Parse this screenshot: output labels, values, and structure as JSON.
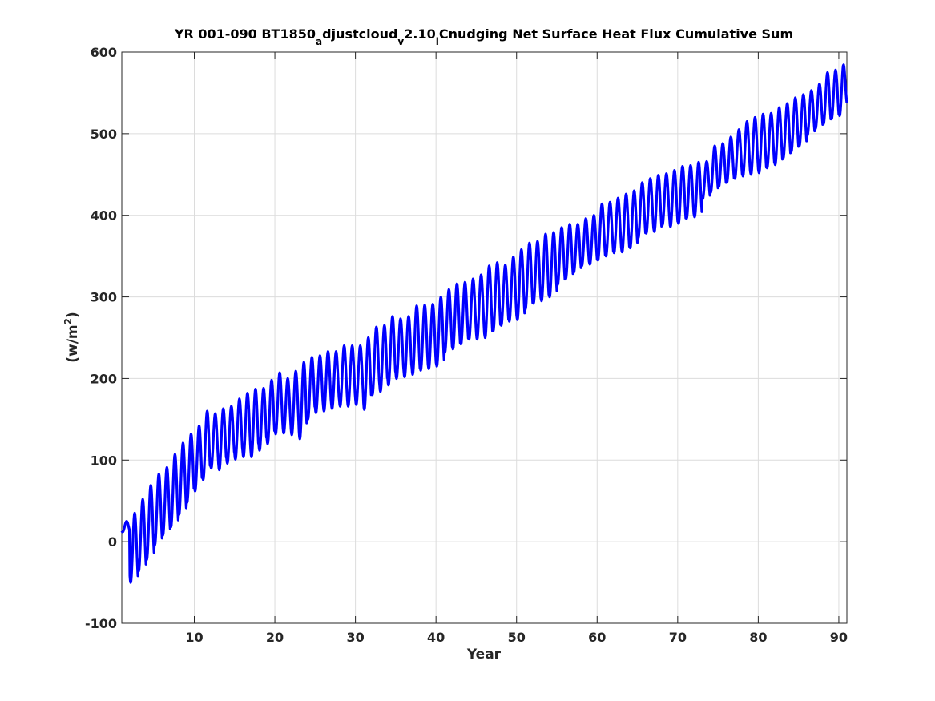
{
  "chart_data": {
    "type": "line",
    "title": {
      "seg1": "YR 001-090 BT1850",
      "sub1": "a",
      "seg2": "djustcloud",
      "sub2": "v",
      "seg3": "2.10",
      "sub3": "l",
      "seg4": "Cnudging Net Surface Heat Flux  Cumulative Sum"
    },
    "xlabel": "Year",
    "ylabel": {
      "main": "(w/m",
      "sup": "2",
      "close": ")"
    },
    "xlim": [
      1,
      91
    ],
    "ylim": [
      -100,
      600
    ],
    "xticks": [
      10,
      20,
      30,
      40,
      50,
      60,
      70,
      80,
      90
    ],
    "yticks": [
      -100,
      0,
      100,
      200,
      300,
      400,
      500,
      600
    ],
    "grid": true,
    "series": [
      {
        "color": "#0000ff",
        "sampling": "annual mean (min/max envelope of a yearly seasonal cycle)",
        "year": [
          1,
          2,
          3,
          4,
          5,
          6,
          7,
          8,
          9,
          10,
          11,
          12,
          13,
          14,
          15,
          16,
          17,
          18,
          19,
          20,
          21,
          22,
          23,
          24,
          25,
          26,
          27,
          28,
          29,
          30,
          31,
          32,
          33,
          34,
          35,
          36,
          37,
          38,
          39,
          40,
          41,
          42,
          43,
          44,
          45,
          46,
          47,
          48,
          49,
          50,
          51,
          52,
          53,
          54,
          55,
          56,
          57,
          58,
          59,
          60,
          61,
          62,
          63,
          64,
          65,
          66,
          67,
          68,
          69,
          70,
          71,
          72,
          73,
          74,
          75,
          76,
          77,
          78,
          79,
          80,
          81,
          82,
          83,
          84,
          85,
          86,
          87,
          88,
          89,
          90
        ],
        "peak": [
          25,
          35,
          52,
          69,
          83,
          91,
          107,
          121,
          132,
          142,
          160,
          157,
          163,
          166,
          175,
          182,
          187,
          188,
          198,
          207,
          200,
          209,
          220,
          226,
          228,
          233,
          233,
          240,
          240,
          240,
          250,
          263,
          265,
          276,
          273,
          276,
          289,
          290,
          291,
          300,
          309,
          316,
          318,
          322,
          327,
          338,
          342,
          339,
          349,
          358,
          366,
          368,
          377,
          379,
          385,
          389,
          389,
          396,
          400,
          414,
          416,
          421,
          426,
          430,
          440,
          445,
          449,
          451,
          455,
          460,
          461,
          465,
          466,
          485,
          488,
          496,
          505,
          515,
          520,
          524,
          525,
          532,
          537,
          544,
          548,
          553,
          561,
          575,
          578,
          586
        ],
        "trough": [
          12,
          -50,
          -36,
          -22,
          -4,
          8,
          18,
          33,
          48,
          62,
          76,
          90,
          88,
          96,
          101,
          104,
          104,
          112,
          120,
          132,
          133,
          131,
          126,
          150,
          158,
          160,
          163,
          166,
          166,
          168,
          162,
          180,
          184,
          192,
          200,
          202,
          205,
          210,
          212,
          215,
          232,
          236,
          242,
          248,
          248,
          250,
          258,
          265,
          270,
          272,
          285,
          292,
          295,
          300,
          315,
          322,
          330,
          338,
          340,
          345,
          350,
          354,
          355,
          360,
          372,
          378,
          380,
          388,
          386,
          390,
          396,
          398,
          420,
          428,
          435,
          440,
          445,
          448,
          450,
          452,
          458,
          462,
          470,
          478,
          485,
          498,
          506,
          512,
          518,
          522
        ]
      }
    ],
    "end_value": 560
  }
}
